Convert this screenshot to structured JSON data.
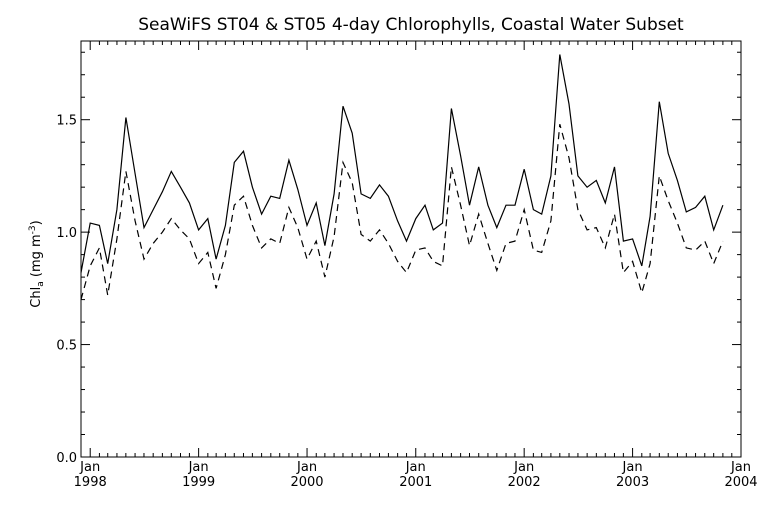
{
  "chart_data": {
    "type": "line",
    "title": "SeaWiFS ST04 & ST05 4-day Chlorophylls, Coastal Water Subset",
    "ylabel": {
      "prefix": "Chl",
      "sub": "a",
      "units_pre": " (mg m",
      "sup": "-3",
      "units_post": ")"
    },
    "xlabel": "",
    "xlim": [
      "1997-12-01",
      "2004-01-01"
    ],
    "ylim": [
      0.0,
      1.85
    ],
    "y_ticks": [
      {
        "value": 0.0,
        "label": "0.0"
      },
      {
        "value": 0.5,
        "label": "0.5"
      },
      {
        "value": 1.0,
        "label": "1.0"
      },
      {
        "value": 1.5,
        "label": "1.5"
      }
    ],
    "x_ticks": [
      {
        "date": "1998-01-01",
        "month": "Jan",
        "year": "1998"
      },
      {
        "date": "1999-01-01",
        "month": "Jan",
        "year": "1999"
      },
      {
        "date": "2000-01-01",
        "month": "Jan",
        "year": "2000"
      },
      {
        "date": "2001-01-01",
        "month": "Jan",
        "year": "2001"
      },
      {
        "date": "2002-01-01",
        "month": "Jan",
        "year": "2002"
      },
      {
        "date": "2003-01-01",
        "month": "Jan",
        "year": "2003"
      },
      {
        "date": "2004-01-01",
        "month": "Jan",
        "year": "2004"
      }
    ],
    "grid": false,
    "legend": "none",
    "series": [
      {
        "style": "solid",
        "color": "#000000",
        "points": [
          [
            "1997-12-01",
            0.82
          ],
          [
            "1998-01-01",
            1.04
          ],
          [
            "1998-02-01",
            1.03
          ],
          [
            "1998-03-01",
            0.86
          ],
          [
            "1998-04-01",
            1.1
          ],
          [
            "1998-05-01",
            1.51
          ],
          [
            "1998-06-01",
            1.26
          ],
          [
            "1998-07-01",
            1.02
          ],
          [
            "1998-08-01",
            1.1
          ],
          [
            "1998-09-01",
            1.18
          ],
          [
            "1998-10-01",
            1.27
          ],
          [
            "1998-11-01",
            1.2
          ],
          [
            "1998-12-01",
            1.13
          ],
          [
            "1999-01-01",
            1.01
          ],
          [
            "1999-02-01",
            1.06
          ],
          [
            "1999-03-01",
            0.88
          ],
          [
            "1999-04-01",
            1.03
          ],
          [
            "1999-05-01",
            1.31
          ],
          [
            "1999-06-01",
            1.36
          ],
          [
            "1999-07-01",
            1.2
          ],
          [
            "1999-08-01",
            1.08
          ],
          [
            "1999-09-01",
            1.16
          ],
          [
            "1999-10-01",
            1.15
          ],
          [
            "1999-11-01",
            1.32
          ],
          [
            "1999-12-01",
            1.19
          ],
          [
            "2000-01-01",
            1.03
          ],
          [
            "2000-02-01",
            1.13
          ],
          [
            "2000-03-01",
            0.94
          ],
          [
            "2000-04-01",
            1.17
          ],
          [
            "2000-05-01",
            1.56
          ],
          [
            "2000-06-01",
            1.44
          ],
          [
            "2000-07-01",
            1.17
          ],
          [
            "2000-08-01",
            1.15
          ],
          [
            "2000-09-01",
            1.21
          ],
          [
            "2000-10-01",
            1.16
          ],
          [
            "2000-11-01",
            1.05
          ],
          [
            "2000-12-01",
            0.96
          ],
          [
            "2001-01-01",
            1.06
          ],
          [
            "2001-02-01",
            1.12
          ],
          [
            "2001-03-01",
            1.01
          ],
          [
            "2001-04-01",
            1.04
          ],
          [
            "2001-05-01",
            1.55
          ],
          [
            "2001-06-01",
            1.34
          ],
          [
            "2001-07-01",
            1.12
          ],
          [
            "2001-08-01",
            1.29
          ],
          [
            "2001-09-01",
            1.12
          ],
          [
            "2001-10-01",
            1.02
          ],
          [
            "2001-11-01",
            1.12
          ],
          [
            "2001-12-01",
            1.12
          ],
          [
            "2002-01-01",
            1.28
          ],
          [
            "2002-02-01",
            1.1
          ],
          [
            "2002-03-01",
            1.08
          ],
          [
            "2002-04-01",
            1.25
          ],
          [
            "2002-05-01",
            1.79
          ],
          [
            "2002-06-01",
            1.57
          ],
          [
            "2002-07-01",
            1.25
          ],
          [
            "2002-08-01",
            1.2
          ],
          [
            "2002-09-01",
            1.23
          ],
          [
            "2002-10-01",
            1.13
          ],
          [
            "2002-11-01",
            1.29
          ],
          [
            "2002-12-01",
            0.96
          ],
          [
            "2003-01-01",
            0.97
          ],
          [
            "2003-02-01",
            0.85
          ],
          [
            "2003-03-01",
            1.07
          ],
          [
            "2003-04-01",
            1.58
          ],
          [
            "2003-05-01",
            1.35
          ],
          [
            "2003-06-01",
            1.23
          ],
          [
            "2003-07-01",
            1.09
          ],
          [
            "2003-08-01",
            1.11
          ],
          [
            "2003-09-01",
            1.16
          ],
          [
            "2003-10-01",
            1.01
          ],
          [
            "2003-11-01",
            1.12
          ]
        ]
      },
      {
        "style": "dashed",
        "color": "#000000",
        "points": [
          [
            "1997-12-01",
            0.7
          ],
          [
            "1998-01-01",
            0.85
          ],
          [
            "1998-02-01",
            0.93
          ],
          [
            "1998-03-01",
            0.72
          ],
          [
            "1998-04-01",
            0.97
          ],
          [
            "1998-05-01",
            1.27
          ],
          [
            "1998-06-01",
            1.05
          ],
          [
            "1998-07-01",
            0.88
          ],
          [
            "1998-08-01",
            0.95
          ],
          [
            "1998-09-01",
            1.0
          ],
          [
            "1998-10-01",
            1.06
          ],
          [
            "1998-11-01",
            1.01
          ],
          [
            "1998-12-01",
            0.97
          ],
          [
            "1999-01-01",
            0.86
          ],
          [
            "1999-02-01",
            0.91
          ],
          [
            "1999-03-01",
            0.75
          ],
          [
            "1999-04-01",
            0.9
          ],
          [
            "1999-05-01",
            1.12
          ],
          [
            "1999-06-01",
            1.16
          ],
          [
            "1999-07-01",
            1.03
          ],
          [
            "1999-08-01",
            0.93
          ],
          [
            "1999-09-01",
            0.97
          ],
          [
            "1999-10-01",
            0.95
          ],
          [
            "1999-11-01",
            1.11
          ],
          [
            "1999-12-01",
            1.02
          ],
          [
            "2000-01-01",
            0.88
          ],
          [
            "2000-02-01",
            0.96
          ],
          [
            "2000-03-01",
            0.8
          ],
          [
            "2000-04-01",
            0.98
          ],
          [
            "2000-05-01",
            1.31
          ],
          [
            "2000-06-01",
            1.22
          ],
          [
            "2000-07-01",
            0.99
          ],
          [
            "2000-08-01",
            0.96
          ],
          [
            "2000-09-01",
            1.01
          ],
          [
            "2000-10-01",
            0.95
          ],
          [
            "2000-11-01",
            0.87
          ],
          [
            "2000-12-01",
            0.82
          ],
          [
            "2001-01-01",
            0.92
          ],
          [
            "2001-02-01",
            0.93
          ],
          [
            "2001-03-01",
            0.87
          ],
          [
            "2001-04-01",
            0.85
          ],
          [
            "2001-05-01",
            1.29
          ],
          [
            "2001-06-01",
            1.12
          ],
          [
            "2001-07-01",
            0.94
          ],
          [
            "2001-08-01",
            1.08
          ],
          [
            "2001-09-01",
            0.95
          ],
          [
            "2001-10-01",
            0.83
          ],
          [
            "2001-11-01",
            0.95
          ],
          [
            "2001-12-01",
            0.96
          ],
          [
            "2002-01-01",
            1.1
          ],
          [
            "2002-02-01",
            0.92
          ],
          [
            "2002-03-01",
            0.91
          ],
          [
            "2002-04-01",
            1.05
          ],
          [
            "2002-05-01",
            1.48
          ],
          [
            "2002-06-01",
            1.33
          ],
          [
            "2002-07-01",
            1.1
          ],
          [
            "2002-08-01",
            1.01
          ],
          [
            "2002-09-01",
            1.02
          ],
          [
            "2002-10-01",
            0.93
          ],
          [
            "2002-11-01",
            1.08
          ],
          [
            "2002-12-01",
            0.82
          ],
          [
            "2003-01-01",
            0.87
          ],
          [
            "2003-02-01",
            0.73
          ],
          [
            "2003-03-01",
            0.86
          ],
          [
            "2003-04-01",
            1.25
          ],
          [
            "2003-05-01",
            1.14
          ],
          [
            "2003-06-01",
            1.04
          ],
          [
            "2003-07-01",
            0.93
          ],
          [
            "2003-08-01",
            0.92
          ],
          [
            "2003-09-01",
            0.96
          ],
          [
            "2003-10-01",
            0.86
          ],
          [
            "2003-11-01",
            0.96
          ]
        ]
      }
    ]
  }
}
